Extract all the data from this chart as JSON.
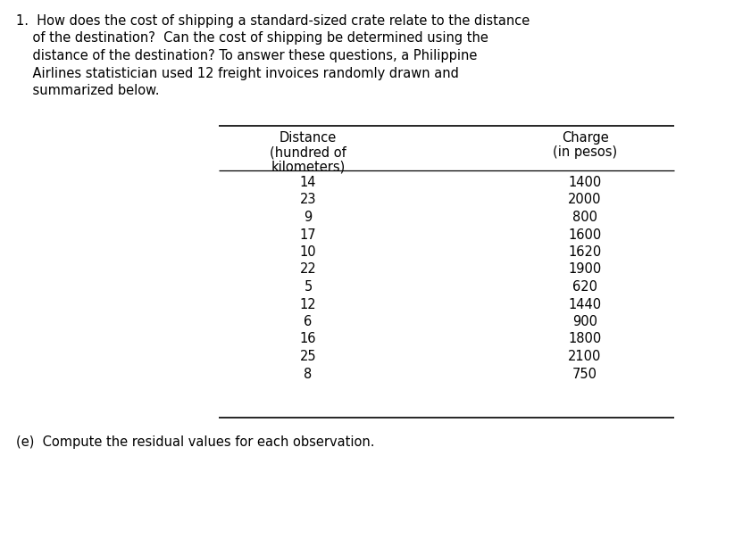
{
  "title_lines": [
    "1.  How does the cost of shipping a standard-sized crate relate to the distance",
    "    of the destination?  Can the cost of shipping be determined using the",
    "    distance of the destination? To answer these questions, a Philippine",
    "    Airlines statistician used 12 freight invoices randomly drawn and",
    "    summarized below."
  ],
  "col1_header": [
    "Distance",
    "(hundred of",
    "kilometers)"
  ],
  "col2_header": [
    "Charge",
    "(in pesos)"
  ],
  "distances": [
    14,
    23,
    9,
    17,
    10,
    22,
    5,
    12,
    6,
    16,
    25,
    8
  ],
  "charges": [
    1400,
    2000,
    800,
    1600,
    1620,
    1900,
    620,
    1440,
    900,
    1800,
    2100,
    750
  ],
  "footer_text": "(e)  Compute the residual values for each observation.",
  "bg_color": "#ffffff",
  "text_color": "#000000",
  "font_size": 10.5,
  "title_font_size": 10.5
}
